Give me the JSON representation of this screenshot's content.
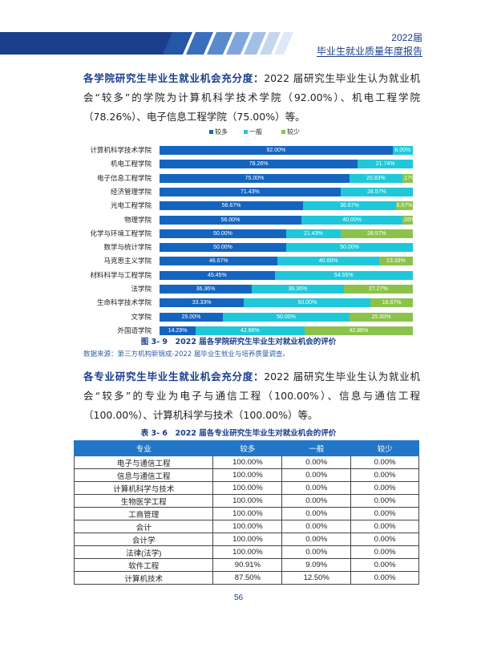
{
  "header": {
    "year": "2022届",
    "title": "毕业生就业质量年度报告"
  },
  "colors": {
    "more": "#1565c0",
    "normal": "#1fc8d9",
    "less": "#8bc34a",
    "accent": "#1a3e8c"
  },
  "section1": {
    "heading": "各学院研究生毕业生就业机会充分度：",
    "body": "2022 届研究生毕业生认为就业机会“较多”的学院为计算机科学技术学院（92.00%）、机电工程学院（78.26%）、电子信息工程学院（75.00%）等。"
  },
  "chart_data": {
    "type": "bar",
    "orientation": "horizontal",
    "stacked": true,
    "legend_position": "top",
    "categories": [
      "计算机科学技术学院",
      "机电工程学院",
      "电子信息工程学院",
      "经济管理学院",
      "光电工程学院",
      "物理学院",
      "化学与环境工程学院",
      "数学与统计学院",
      "马克思主义学院",
      "材料科学与工程学院",
      "法学院",
      "生命科学技术学院",
      "文学院",
      "外国语学院"
    ],
    "series": [
      {
        "name": "较多",
        "values": [
          92.0,
          78.26,
          75.0,
          71.43,
          56.67,
          56.0,
          50.0,
          50.0,
          46.67,
          45.45,
          36.36,
          33.33,
          25.0,
          14.29
        ],
        "labels": [
          "92.00%",
          "78.26%",
          "75.00%",
          "71.43%",
          "56.67%",
          "56.00%",
          "50.00%",
          "50.00%",
          "46.67%",
          "45.45%",
          "36.36%",
          "33.33%",
          "25.00%",
          "14.29%"
        ]
      },
      {
        "name": "一般",
        "values": [
          8.0,
          21.74,
          20.83,
          28.57,
          36.67,
          40.0,
          21.43,
          50.0,
          40.0,
          54.55,
          36.36,
          50.0,
          50.0,
          42.86
        ],
        "labels": [
          "8.00%",
          "21.74%",
          "20.83%",
          "28.57%",
          "36.67%",
          "40.00%",
          "21.43%",
          "50.00%",
          "40.00%",
          "54.55%",
          "36.36%",
          "50.00%",
          "50.00%",
          "42.86%"
        ]
      },
      {
        "name": "较少",
        "values": [
          0,
          0,
          4.17,
          0,
          6.67,
          4.0,
          28.57,
          0,
          13.33,
          0,
          27.27,
          16.67,
          25.0,
          42.86
        ],
        "labels": [
          "",
          "",
          "4.17%",
          "",
          "6.67%",
          "4.00%",
          "28.57%",
          "",
          "13.33%",
          "",
          "27.27%",
          "16.67%",
          "25.00%",
          "42.86%"
        ]
      }
    ]
  },
  "figure_caption": "图 3- 9　2022 届各学院研究生毕业生对就业机会的评价",
  "source_note": "数据来源：第三方机构新锦成-2022 届毕业生就业与培养质量调查。",
  "section2": {
    "heading": "各专业研究生毕业生就业机会充分度：",
    "body": "2022 届研究生毕业生认为就业机会“较多”的专业为电子与通信工程（100.00%）、信息与通信工程（100.00%）、计算机科学与技术（100.00%）等。"
  },
  "table": {
    "caption": "表 3- 6　2022 届各专业研究生毕业生对就业机会的评价",
    "headers": [
      "专业",
      "较多",
      "一般",
      "较少"
    ],
    "rows": [
      [
        "电子与通信工程",
        "100.00%",
        "0.00%",
        "0.00%"
      ],
      [
        "信息与通信工程",
        "100.00%",
        "0.00%",
        "0.00%"
      ],
      [
        "计算机科学与技术",
        "100.00%",
        "0.00%",
        "0.00%"
      ],
      [
        "生物医学工程",
        "100.00%",
        "0.00%",
        "0.00%"
      ],
      [
        "工商管理",
        "100.00%",
        "0.00%",
        "0.00%"
      ],
      [
        "会计",
        "100.00%",
        "0.00%",
        "0.00%"
      ],
      [
        "会计学",
        "100.00%",
        "0.00%",
        "0.00%"
      ],
      [
        "法律(法学)",
        "100.00%",
        "0.00%",
        "0.00%"
      ],
      [
        "软件工程",
        "90.91%",
        "9.09%",
        "0.00%"
      ],
      [
        "计算机技术",
        "87.50%",
        "12.50%",
        "0.00%"
      ]
    ]
  },
  "page_number": "56"
}
